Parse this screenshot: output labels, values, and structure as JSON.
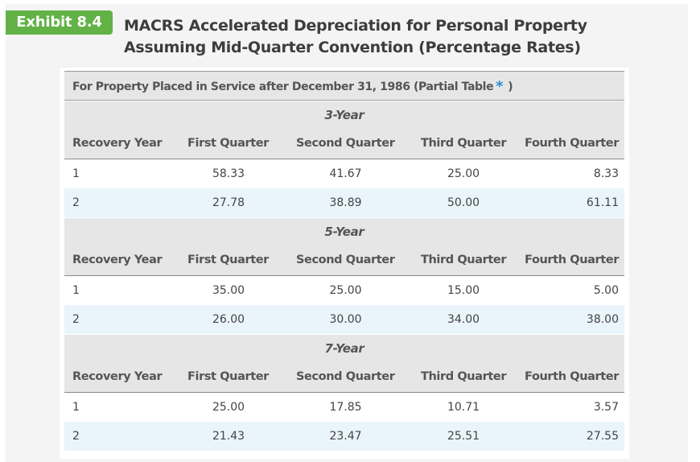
{
  "exhibit": {
    "badge": "Exhibit 8.4",
    "title": "MACRS Accelerated Depreciation for Personal Property Assuming Mid-Quarter Convention (Percentage Rates)"
  },
  "table": {
    "caption": "For Property Placed in Service after December 31, 1986 (Partial Table",
    "caption_asterisk": "*",
    "caption_close": ")",
    "columns": [
      "Recovery Year",
      "First Quarter",
      "Second Quarter",
      "Third Quarter",
      "Fourth Quarter"
    ],
    "sections": [
      {
        "title": "3-Year",
        "rows": [
          [
            "1",
            "58.33",
            "41.67",
            "25.00",
            "8.33"
          ],
          [
            "2",
            "27.78",
            "38.89",
            "50.00",
            "61.11"
          ]
        ]
      },
      {
        "title": "5-Year",
        "rows": [
          [
            "1",
            "35.00",
            "25.00",
            "15.00",
            "5.00"
          ],
          [
            "2",
            "26.00",
            "30.00",
            "34.00",
            "38.00"
          ]
        ]
      },
      {
        "title": "7-Year",
        "rows": [
          [
            "1",
            "25.00",
            "17.85",
            "10.71",
            "3.57"
          ],
          [
            "2",
            "21.43",
            "23.47",
            "25.51",
            "27.55"
          ]
        ]
      }
    ]
  },
  "colors": {
    "badge_green": "#62b246",
    "asterisk_blue": "#2a8ed0",
    "header_gray": "#e6e6e6",
    "alt_row_blue": "#eaf4fb"
  }
}
